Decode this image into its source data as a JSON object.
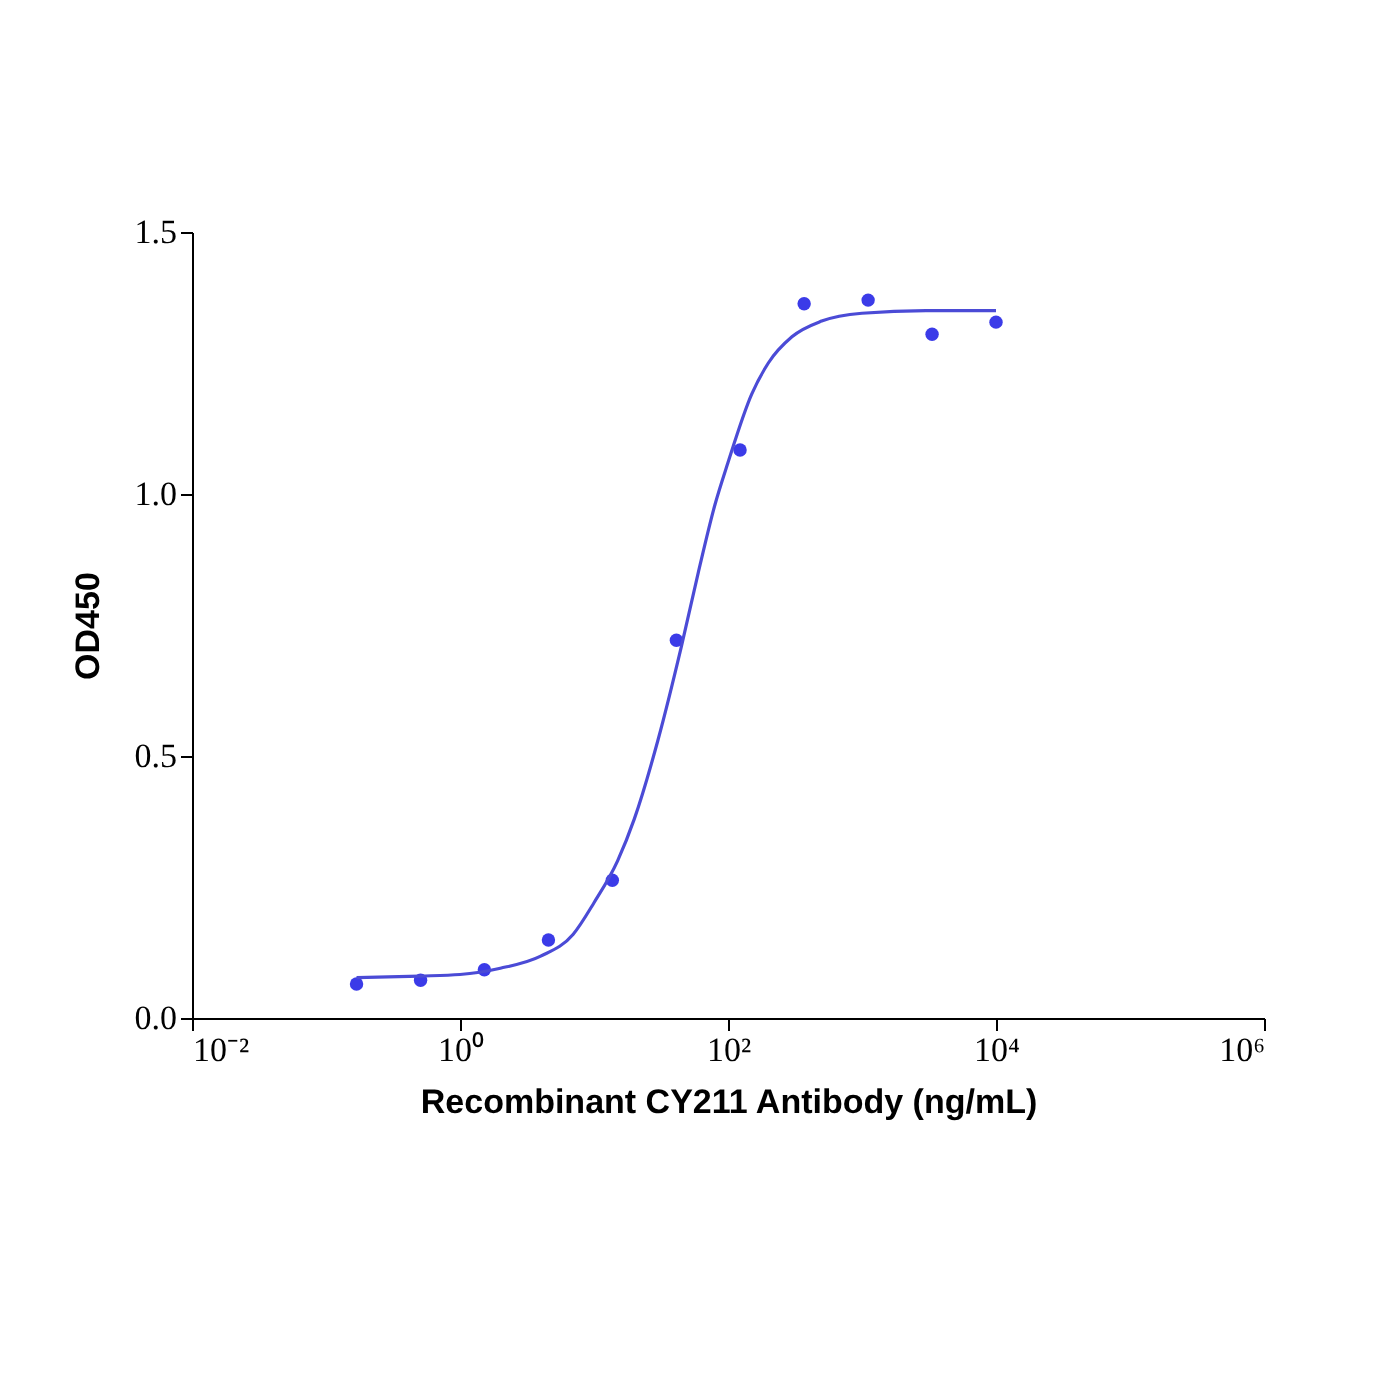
{
  "chart_data": {
    "type": "scatter",
    "xlabel": "Recombinant CY211 Antibody (ng/mL)",
    "ylabel": "OD450",
    "log": "x",
    "xlim": [
      0.01,
      1000000
    ],
    "xticks": [
      {
        "value": 0.01,
        "label": "10⁻²"
      },
      {
        "value": 1,
        "label": "10⁰"
      },
      {
        "value": 100,
        "label": "10²"
      },
      {
        "value": 10000,
        "label": "10⁴"
      },
      {
        "value": 1000000,
        "label": "10⁶"
      }
    ],
    "ylim": [
      0,
      1.5
    ],
    "yticks": [
      {
        "value": 0,
        "label": "0.0"
      },
      0.5,
      {
        "value": 1,
        "label": "1.0"
      },
      1.5
    ],
    "series": [
      {
        "marker": "circle",
        "color": "#3b3be8",
        "x": [
          0.169,
          0.508,
          1.52,
          4.57,
          13.7,
          41.2,
          123,
          370,
          1111,
          3333,
          10000
        ],
        "values": [
          0.065,
          0.072,
          0.092,
          0.149,
          0.263,
          0.721,
          1.084,
          1.363,
          1.37,
          1.305,
          1.328
        ]
      },
      {
        "type": "line",
        "marker": "none",
        "line_style": "solid",
        "color": "#4b4bd6",
        "x": [
          0.169,
          0.5,
          1,
          2,
          4,
          7,
          10,
          15,
          20,
          30,
          45,
          60,
          80,
          100,
          150,
          200,
          300,
          500,
          1000,
          3000,
          10000
        ],
        "values": [
          0.077,
          0.08,
          0.083,
          0.095,
          0.118,
          0.16,
          0.22,
          0.3,
          0.38,
          0.53,
          0.71,
          0.85,
          0.98,
          1.06,
          1.19,
          1.25,
          1.3,
          1.33,
          1.345,
          1.35,
          1.35
        ]
      }
    ]
  }
}
